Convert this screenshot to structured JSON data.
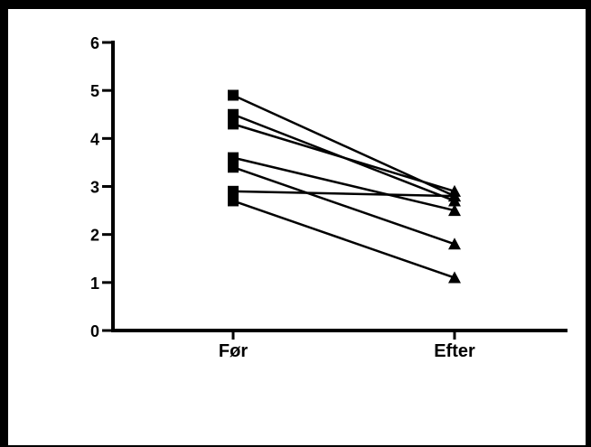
{
  "chart_data": {
    "type": "line",
    "title": "",
    "xlabel": "",
    "ylabel": "",
    "categories": [
      "Før",
      "Efter"
    ],
    "y_ticks": [
      "0",
      "1",
      "2",
      "3",
      "4",
      "5",
      "6"
    ],
    "ylim": [
      0,
      6
    ],
    "grid": false,
    "legend": "none",
    "markers": [
      "square",
      "triangle"
    ],
    "color": "#000000",
    "series": [
      {
        "values": [
          4.9,
          2.8
        ]
      },
      {
        "values": [
          4.5,
          2.7
        ]
      },
      {
        "values": [
          4.3,
          2.9
        ]
      },
      {
        "values": [
          3.6,
          2.5
        ]
      },
      {
        "values": [
          3.4,
          1.8
        ]
      },
      {
        "values": [
          2.9,
          2.8
        ]
      },
      {
        "values": [
          2.7,
          1.1
        ]
      }
    ]
  }
}
